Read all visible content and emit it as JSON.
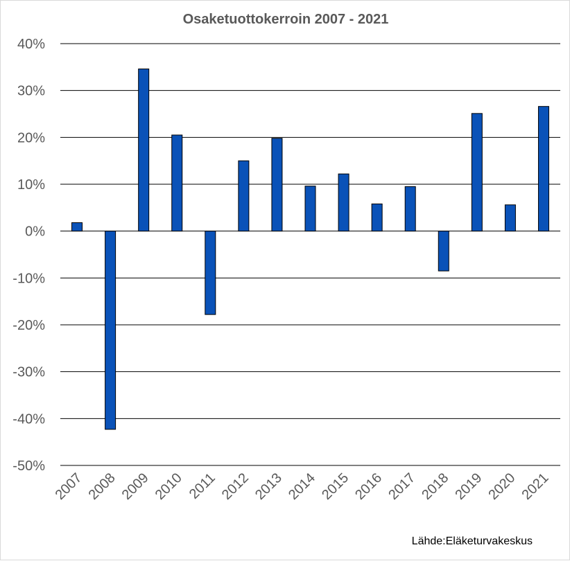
{
  "chart_data": {
    "type": "bar",
    "title": "Osaketuottokerroin 2007 - 2021",
    "categories": [
      "2007",
      "2008",
      "2009",
      "2010",
      "2011",
      "2012",
      "2013",
      "2014",
      "2015",
      "2016",
      "2017",
      "2018",
      "2019",
      "2020",
      "2021"
    ],
    "values": [
      1.8,
      -42.3,
      34.6,
      20.5,
      -17.8,
      15.0,
      19.8,
      9.6,
      12.2,
      5.8,
      9.5,
      -8.5,
      25.1,
      5.6,
      26.6
    ],
    "value_unit": "%",
    "ylim": [
      -50,
      40
    ],
    "yticks": [
      "40%",
      "30%",
      "20%",
      "10%",
      "0%",
      "-10%",
      "-20%",
      "-30%",
      "-40%",
      "-50%"
    ],
    "ytick_values": [
      40,
      30,
      20,
      10,
      0,
      -10,
      -20,
      -30,
      -40,
      -50
    ],
    "grid": true,
    "bar_color": "#0a52b8",
    "xtick_rotation": "45deg",
    "source": "Lähde:Eläketurvakeskus"
  }
}
